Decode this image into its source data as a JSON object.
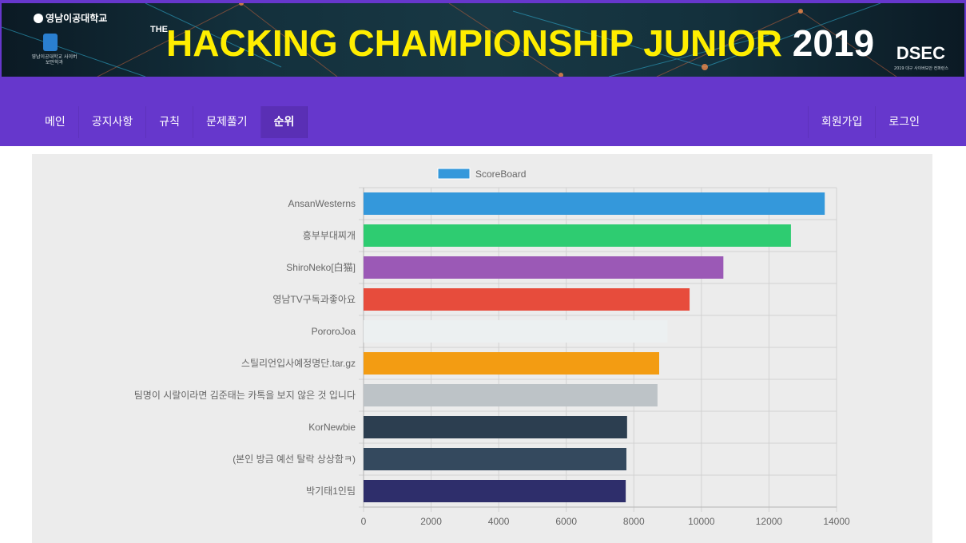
{
  "banner": {
    "school_name": "영남이공대학교",
    "dept_name": "영남이공대학교 사이버보안학과",
    "the_text": "THE",
    "title": "HACKING CHAMPIONSHIP JUNIOR",
    "year": "2019",
    "sponsor_logo": "DSEC",
    "sponsor_sub": "2019 대구 사이버보안 컨퍼런스"
  },
  "nav": {
    "left": [
      {
        "label": "메인",
        "active": false
      },
      {
        "label": "공지사항",
        "active": false
      },
      {
        "label": "규칙",
        "active": false
      },
      {
        "label": "문제풀기",
        "active": false
      },
      {
        "label": "순위",
        "active": true
      }
    ],
    "right": [
      {
        "label": "회원가입"
      },
      {
        "label": "로그인"
      }
    ]
  },
  "colors": {
    "navbar": "#6637cc",
    "title_yellow": "#ffee00",
    "panel_bg": "#ececec"
  },
  "chart_data": {
    "type": "bar",
    "orientation": "horizontal",
    "legend": {
      "label": "ScoreBoard",
      "color": "#3498db",
      "placement": "top-center"
    },
    "categories": [
      "AnsanWesterns",
      "흥부부대찌개",
      "ShiroNeko[白猫]",
      "영남TV구독과좋아요",
      "PororoJoa",
      "스틸리언입사예정명단.tar.gz",
      "팀명이 시랄이라면 김준태는 카톡을 보지 않은 것 입니다",
      "KorNewbie",
      "(본인 방금 예선 탈락 상상함ㅋ)",
      "박기태1인팀"
    ],
    "values": [
      13650,
      12650,
      10650,
      9650,
      9000,
      8750,
      8700,
      7800,
      7780,
      7760
    ],
    "bar_colors": [
      "#3498db",
      "#2ecc71",
      "#9b59b6",
      "#e74c3c",
      "#ecf0f1",
      "#f39c12",
      "#bdc3c7",
      "#2c3e50",
      "#34495e",
      "#2e2e6b"
    ],
    "xlim": [
      0,
      14000
    ],
    "xticks": [
      0,
      2000,
      4000,
      6000,
      8000,
      10000,
      12000,
      14000
    ],
    "grid": true,
    "title": "",
    "xlabel": "",
    "ylabel": ""
  }
}
